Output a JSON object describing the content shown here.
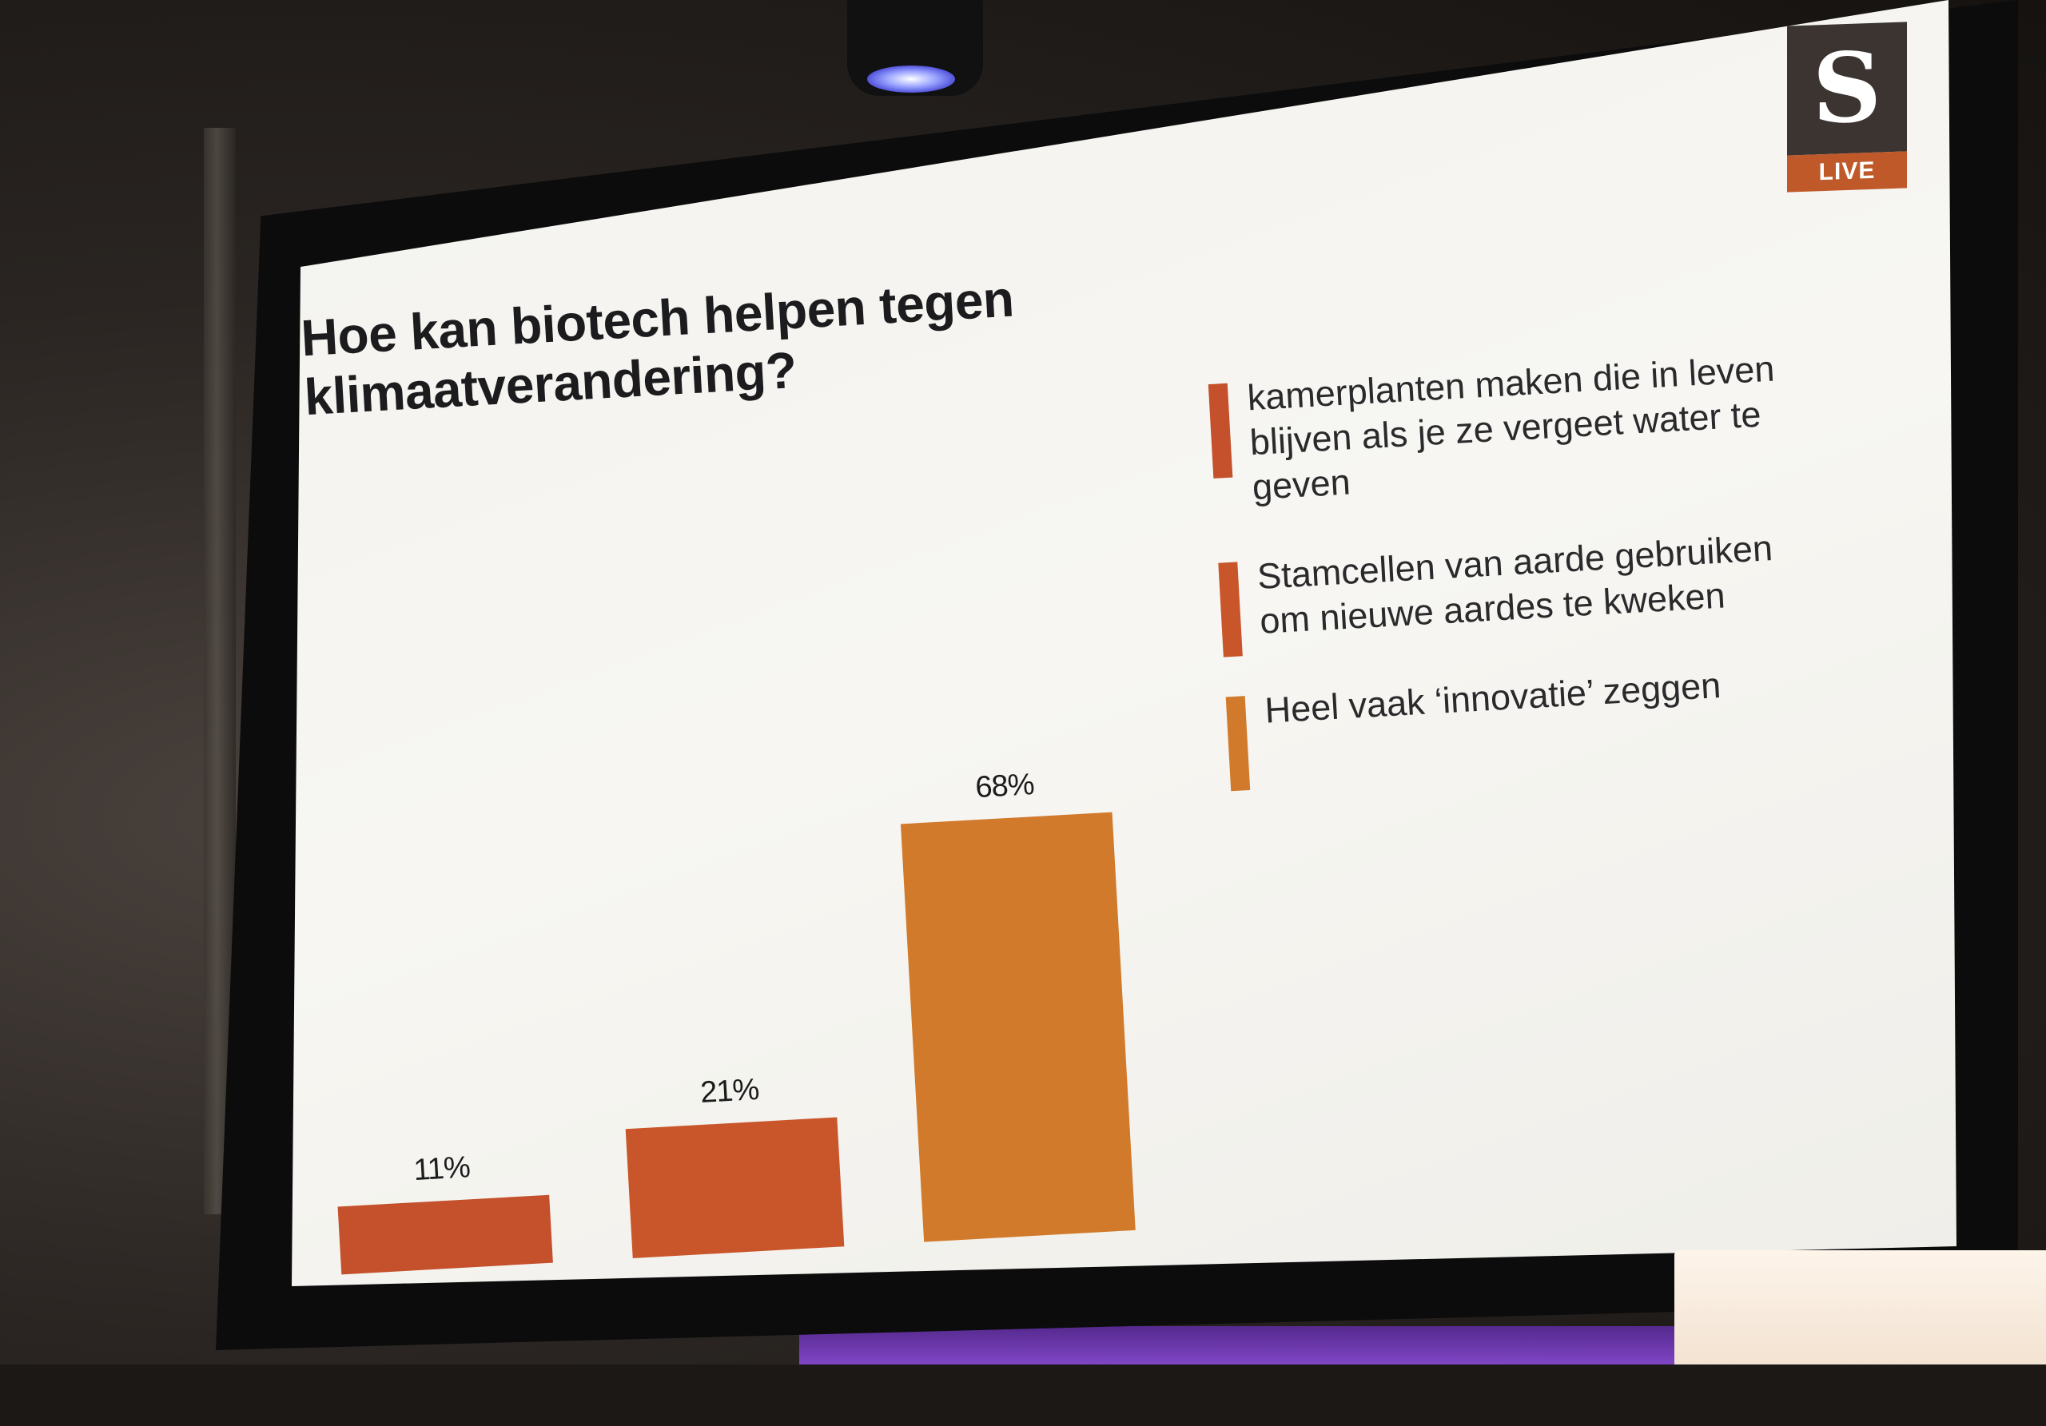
{
  "logo": {
    "letter": "S",
    "sub": "LIVE",
    "top_color": "#3b3431",
    "bottom_color": "#c0592a"
  },
  "chart_data": {
    "type": "bar",
    "title": "Hoe kan biotech helpen tegen klimaatverandering?",
    "categories": [
      "kamerplanten maken die in leven blijven als je ze vergeet water te geven",
      "Stamcellen van aarde gebruiken om nieuwe aardes te kweken",
      "Heel vaak ‘innovatie’ zeggen"
    ],
    "values": [
      11,
      21,
      68
    ],
    "value_labels": [
      "11%",
      "21%",
      "68%"
    ],
    "colors": [
      "#c4502c",
      "#c8562a",
      "#d27a2c"
    ],
    "ylim": [
      0,
      100
    ],
    "grid": false,
    "legend": "right"
  }
}
